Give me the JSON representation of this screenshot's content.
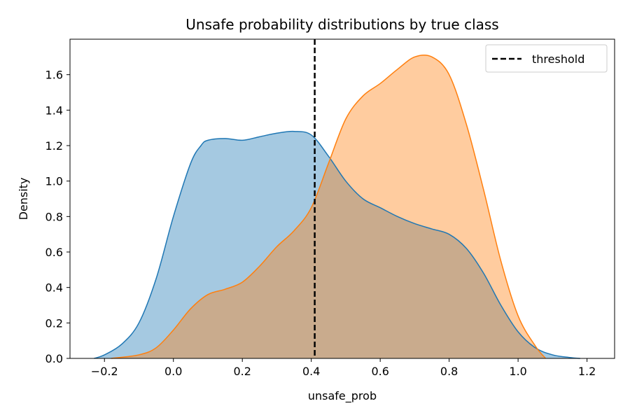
{
  "chart_data": {
    "type": "area",
    "title": "Unsafe probability distributions by true class",
    "xlabel": "unsafe_prob",
    "ylabel": "Density",
    "xlim": [
      -0.3,
      1.28
    ],
    "ylim": [
      0,
      1.8
    ],
    "x_ticks": [
      -0.2,
      0.0,
      0.2,
      0.4,
      0.6,
      0.8,
      1.0,
      1.2
    ],
    "x_tick_labels": [
      "−0.2",
      "0.0",
      "0.2",
      "0.4",
      "0.6",
      "0.8",
      "1.0",
      "1.2"
    ],
    "y_ticks": [
      0.0,
      0.2,
      0.4,
      0.6,
      0.8,
      1.0,
      1.2,
      1.4,
      1.6
    ],
    "y_tick_labels": [
      "0.0",
      "0.2",
      "0.4",
      "0.6",
      "0.8",
      "1.0",
      "1.2",
      "1.4",
      "1.6"
    ],
    "grid": false,
    "legend_position": "top-right",
    "threshold": {
      "x": 0.41,
      "label": "threshold",
      "color": "#000000",
      "style": "dashed"
    },
    "series": [
      {
        "color": "#1f77b4",
        "fill_color": "#1f77b4",
        "fill_opacity": 0.4,
        "x": [
          -0.23,
          -0.2,
          -0.15,
          -0.1,
          -0.05,
          0.0,
          0.05,
          0.08,
          0.1,
          0.15,
          0.2,
          0.25,
          0.3,
          0.35,
          0.4,
          0.45,
          0.5,
          0.55,
          0.6,
          0.65,
          0.7,
          0.75,
          0.8,
          0.85,
          0.9,
          0.95,
          1.0,
          1.05,
          1.1,
          1.15,
          1.18
        ],
        "y": [
          0.0,
          0.02,
          0.08,
          0.2,
          0.45,
          0.8,
          1.1,
          1.2,
          1.23,
          1.24,
          1.23,
          1.25,
          1.27,
          1.28,
          1.26,
          1.14,
          1.0,
          0.9,
          0.85,
          0.8,
          0.76,
          0.73,
          0.7,
          0.62,
          0.48,
          0.3,
          0.15,
          0.06,
          0.02,
          0.005,
          0.0
        ]
      },
      {
        "color": "#ff7f0e",
        "fill_color": "#ff7f0e",
        "fill_opacity": 0.4,
        "x": [
          -0.18,
          -0.1,
          -0.05,
          0.0,
          0.05,
          0.1,
          0.15,
          0.2,
          0.25,
          0.3,
          0.35,
          0.4,
          0.45,
          0.5,
          0.55,
          0.6,
          0.65,
          0.7,
          0.75,
          0.8,
          0.85,
          0.9,
          0.95,
          1.0,
          1.05,
          1.08
        ],
        "y": [
          0.0,
          0.02,
          0.06,
          0.16,
          0.28,
          0.36,
          0.39,
          0.43,
          0.52,
          0.63,
          0.72,
          0.85,
          1.1,
          1.35,
          1.48,
          1.55,
          1.63,
          1.7,
          1.7,
          1.6,
          1.32,
          0.95,
          0.55,
          0.24,
          0.07,
          0.0
        ]
      }
    ]
  }
}
